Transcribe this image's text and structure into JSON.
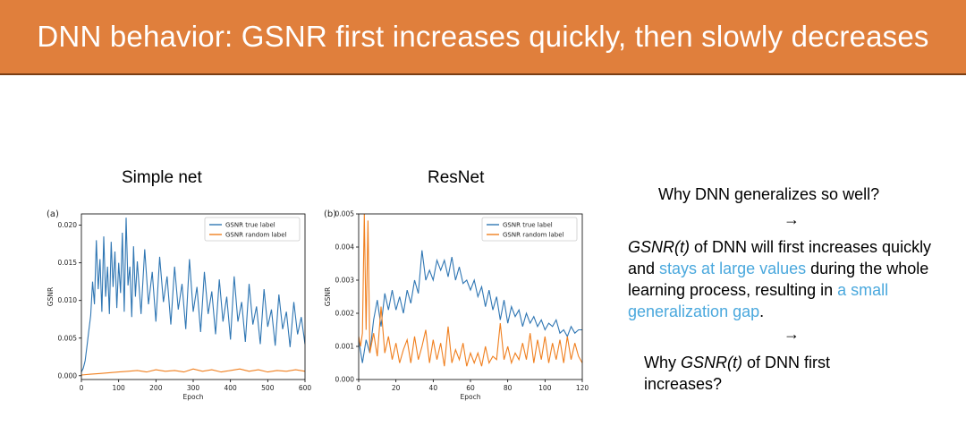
{
  "slide": {
    "title": "DNN behavior: GSNR first increases quickly, then slowly decreases",
    "panel_a_title": "Simple net",
    "panel_b_title": "ResNet",
    "question1": "Why DNN generalizes so well?",
    "arrow": "→",
    "para_em": "GSNR(t)",
    "para_1": " of DNN will first increases quickly and ",
    "para_hl1": "stays at large values",
    "para_2": " during the whole learning process, resulting in ",
    "para_hl2": "a small generalization gap",
    "para_3": ".",
    "q2_1": "Why ",
    "q2_em": "GSNR(t)",
    "q2_2": " of DNN first increases?"
  },
  "colors": {
    "accent_orange": "#e07f3c",
    "highlight_blue": "#4aa8dd",
    "series_blue": "#2f76b3",
    "series_orange": "#f07f1e"
  },
  "chart_data": [
    {
      "type": "line",
      "panel_label": "(a)",
      "xlabel": "Epoch",
      "ylabel": "GSNR",
      "xlim": [
        0,
        600
      ],
      "ylim": [
        -0.0005,
        0.0215
      ],
      "xticks": [
        0,
        100,
        200,
        300,
        400,
        500,
        600
      ],
      "yticks": [
        0.0,
        0.005,
        0.01,
        0.015,
        0.02
      ],
      "ytick_labels": [
        "0.000",
        "0.005",
        "0.010",
        "0.015",
        "0.020"
      ],
      "legend_position": "top-right",
      "series": [
        {
          "name": "GSNR true label",
          "color": "#2f76b3",
          "x": [
            0,
            5,
            10,
            15,
            20,
            25,
            30,
            35,
            40,
            45,
            50,
            55,
            60,
            65,
            70,
            75,
            80,
            85,
            90,
            95,
            100,
            105,
            110,
            115,
            120,
            125,
            130,
            135,
            140,
            145,
            150,
            160,
            170,
            180,
            190,
            200,
            210,
            220,
            230,
            240,
            250,
            260,
            270,
            280,
            290,
            300,
            310,
            320,
            330,
            340,
            350,
            360,
            370,
            380,
            390,
            400,
            410,
            420,
            430,
            440,
            450,
            460,
            470,
            480,
            490,
            500,
            510,
            520,
            530,
            540,
            550,
            560,
            570,
            580,
            590,
            600
          ],
          "y": [
            0.0005,
            0.001,
            0.002,
            0.004,
            0.006,
            0.008,
            0.0125,
            0.0095,
            0.018,
            0.0115,
            0.0155,
            0.0085,
            0.0185,
            0.0105,
            0.0145,
            0.0082,
            0.0178,
            0.0118,
            0.0165,
            0.009,
            0.015,
            0.011,
            0.019,
            0.0085,
            0.021,
            0.012,
            0.0145,
            0.0078,
            0.0172,
            0.0105,
            0.0152,
            0.0082,
            0.0168,
            0.0095,
            0.0138,
            0.0072,
            0.0158,
            0.0098,
            0.0132,
            0.0068,
            0.0145,
            0.0088,
            0.0122,
            0.0062,
            0.0155,
            0.0085,
            0.0118,
            0.0058,
            0.0138,
            0.0082,
            0.0112,
            0.0055,
            0.0128,
            0.0072,
            0.0105,
            0.0048,
            0.0132,
            0.0072,
            0.0098,
            0.0045,
            0.0122,
            0.0068,
            0.0092,
            0.0042,
            0.0115,
            0.0065,
            0.0088,
            0.004,
            0.0108,
            0.0062,
            0.0085,
            0.0038,
            0.0098,
            0.0055,
            0.0078,
            0.0042
          ]
        },
        {
          "name": "GSNR random label",
          "color": "#f07f1e",
          "x": [
            0,
            25,
            50,
            75,
            100,
            125,
            150,
            175,
            200,
            225,
            250,
            275,
            300,
            325,
            350,
            375,
            400,
            425,
            450,
            475,
            500,
            525,
            550,
            575,
            600
          ],
          "y": [
            0.0001,
            0.0002,
            0.0003,
            0.0004,
            0.0005,
            0.0006,
            0.0007,
            0.0005,
            0.0008,
            0.0006,
            0.0007,
            0.0005,
            0.0009,
            0.0006,
            0.0008,
            0.0005,
            0.0007,
            0.0009,
            0.0006,
            0.0008,
            0.0005,
            0.0007,
            0.0006,
            0.0008,
            0.0006
          ]
        }
      ]
    },
    {
      "type": "line",
      "panel_label": "(b)",
      "xlabel": "Epoch",
      "ylabel": "GSNR",
      "xlim": [
        0,
        120
      ],
      "ylim": [
        0,
        0.005
      ],
      "xticks": [
        0,
        20,
        40,
        60,
        80,
        100,
        120
      ],
      "yticks": [
        0.0,
        0.001,
        0.002,
        0.003,
        0.004,
        0.005
      ],
      "ytick_labels": [
        "0.000",
        "0.001",
        "0.002",
        "0.003",
        "0.004",
        "0.005"
      ],
      "legend_position": "top-right",
      "series": [
        {
          "name": "GSNR true label",
          "color": "#2f76b3",
          "x": [
            0,
            2,
            4,
            6,
            8,
            10,
            12,
            14,
            16,
            18,
            20,
            22,
            24,
            26,
            28,
            30,
            32,
            34,
            36,
            38,
            40,
            42,
            44,
            46,
            48,
            50,
            52,
            54,
            56,
            58,
            60,
            62,
            64,
            66,
            68,
            70,
            72,
            74,
            76,
            78,
            80,
            82,
            84,
            86,
            88,
            90,
            92,
            94,
            96,
            98,
            100,
            102,
            104,
            106,
            108,
            110,
            112,
            114,
            116,
            118,
            120
          ],
          "y": [
            0.0012,
            0.0005,
            0.0012,
            0.0008,
            0.0018,
            0.0024,
            0.0016,
            0.0026,
            0.0021,
            0.0027,
            0.0021,
            0.0025,
            0.002,
            0.0027,
            0.0023,
            0.003,
            0.0026,
            0.0039,
            0.003,
            0.0033,
            0.003,
            0.0036,
            0.0033,
            0.0036,
            0.0031,
            0.0037,
            0.003,
            0.0034,
            0.0029,
            0.003,
            0.0027,
            0.003,
            0.0025,
            0.0028,
            0.0022,
            0.0027,
            0.0021,
            0.0025,
            0.0018,
            0.0024,
            0.0017,
            0.0022,
            0.0019,
            0.0021,
            0.0016,
            0.002,
            0.0017,
            0.0019,
            0.0016,
            0.0018,
            0.0015,
            0.0017,
            0.0016,
            0.0018,
            0.0014,
            0.0015,
            0.0013,
            0.0016,
            0.0014,
            0.0015,
            0.0015
          ]
        },
        {
          "name": "GSNR random label",
          "color": "#f07f1e",
          "x": [
            0,
            1,
            2,
            3,
            4,
            5,
            6,
            8,
            10,
            12,
            14,
            16,
            18,
            20,
            22,
            24,
            26,
            28,
            30,
            32,
            34,
            36,
            38,
            40,
            42,
            44,
            46,
            48,
            50,
            52,
            54,
            56,
            58,
            60,
            62,
            64,
            66,
            68,
            70,
            72,
            74,
            76,
            78,
            80,
            82,
            84,
            86,
            88,
            90,
            92,
            94,
            96,
            98,
            100,
            102,
            104,
            106,
            108,
            110,
            112,
            114,
            116,
            118,
            120
          ],
          "y": [
            0.0013,
            0.001,
            0.0014,
            0.005,
            0.0015,
            0.0048,
            0.0008,
            0.0014,
            0.0007,
            0.0022,
            0.0008,
            0.0013,
            0.0006,
            0.0011,
            0.0005,
            0.0009,
            0.0012,
            0.0005,
            0.0013,
            0.0006,
            0.001,
            0.0015,
            0.0005,
            0.0012,
            0.0006,
            0.0011,
            0.0004,
            0.0016,
            0.0005,
            0.0009,
            0.0006,
            0.0011,
            0.0004,
            0.0008,
            0.0005,
            0.0008,
            0.0004,
            0.001,
            0.0005,
            0.0007,
            0.0006,
            0.0017,
            0.0006,
            0.001,
            0.0005,
            0.0008,
            0.0006,
            0.0011,
            0.0006,
            0.0014,
            0.0005,
            0.0012,
            0.0006,
            0.0013,
            0.0005,
            0.0011,
            0.0006,
            0.0012,
            0.0005,
            0.0013,
            0.0006,
            0.0011,
            0.0007,
            0.0005
          ]
        }
      ]
    }
  ]
}
